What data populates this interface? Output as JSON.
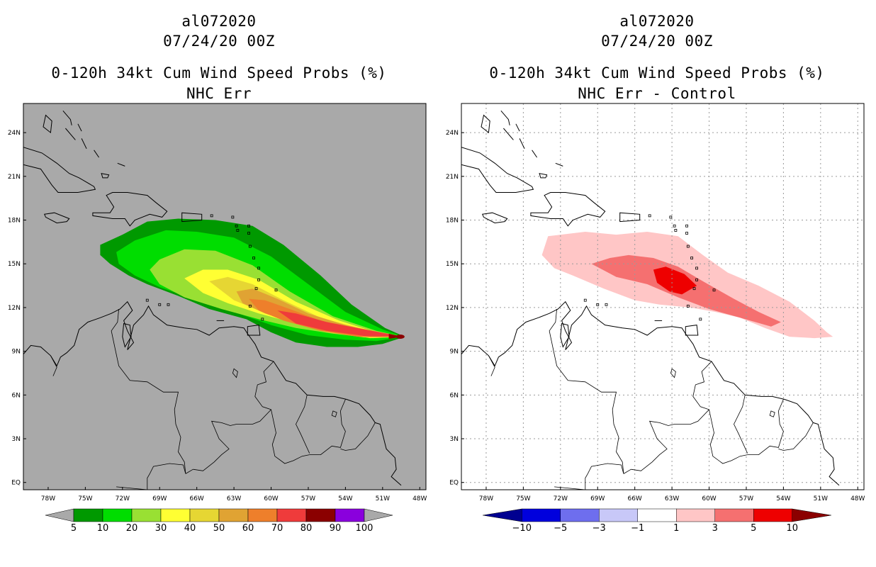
{
  "panels": [
    {
      "id": "left",
      "storm": "al072020",
      "datetime": "07/24/20 00Z",
      "product": "0-120h 34kt Cum Wind Speed Probs (%)",
      "subtitle": "NHC Err",
      "background": "#a9a9a9",
      "colorbar": {
        "labels": [
          "5",
          "10",
          "20",
          "30",
          "40",
          "50",
          "60",
          "70",
          "80",
          "90",
          "100"
        ],
        "colors": [
          "#009900",
          "#00dd00",
          "#99e033",
          "#ffff33",
          "#e6d633",
          "#e0a333",
          "#ee7f2b",
          "#ef3b3b",
          "#8b0000",
          "#8a00dd"
        ],
        "end_left": "#a9a9a9",
        "end_right": "#a9a9a9"
      }
    },
    {
      "id": "right",
      "storm": "al072020",
      "datetime": "07/24/20 00Z",
      "product": "0-120h 34kt Cum Wind Speed Probs (%)",
      "subtitle": "NHC Err - Control",
      "background": "#ffffff",
      "colorbar": {
        "labels": [
          "−10",
          "−5",
          "−3",
          "−1",
          "1",
          "3",
          "5",
          "10"
        ],
        "colors": [
          "#0000dd",
          "#6e6eee",
          "#c8c8f8",
          "#ffffff",
          "#ffc6c6",
          "#f57070",
          "#ee0000"
        ],
        "end_left": "#000090",
        "end_right": "#8b0000"
      }
    }
  ],
  "axes": {
    "lon_labels": [
      "78W",
      "75W",
      "72W",
      "69W",
      "66W",
      "63W",
      "60W",
      "57W",
      "54W",
      "51W",
      "48W"
    ],
    "lat_labels": [
      "EQ",
      "3N",
      "6N",
      "9N",
      "12N",
      "15N",
      "18N",
      "21N",
      "24N"
    ],
    "lon_range": [
      -80,
      -47.5
    ],
    "lat_range": [
      -0.5,
      26
    ]
  },
  "map_data": {
    "variable": "34kt cumulative wind speed probability",
    "forecast_window": "0-120h",
    "genesis_point": {
      "lon": -49.4,
      "lat": 10.0
    }
  }
}
